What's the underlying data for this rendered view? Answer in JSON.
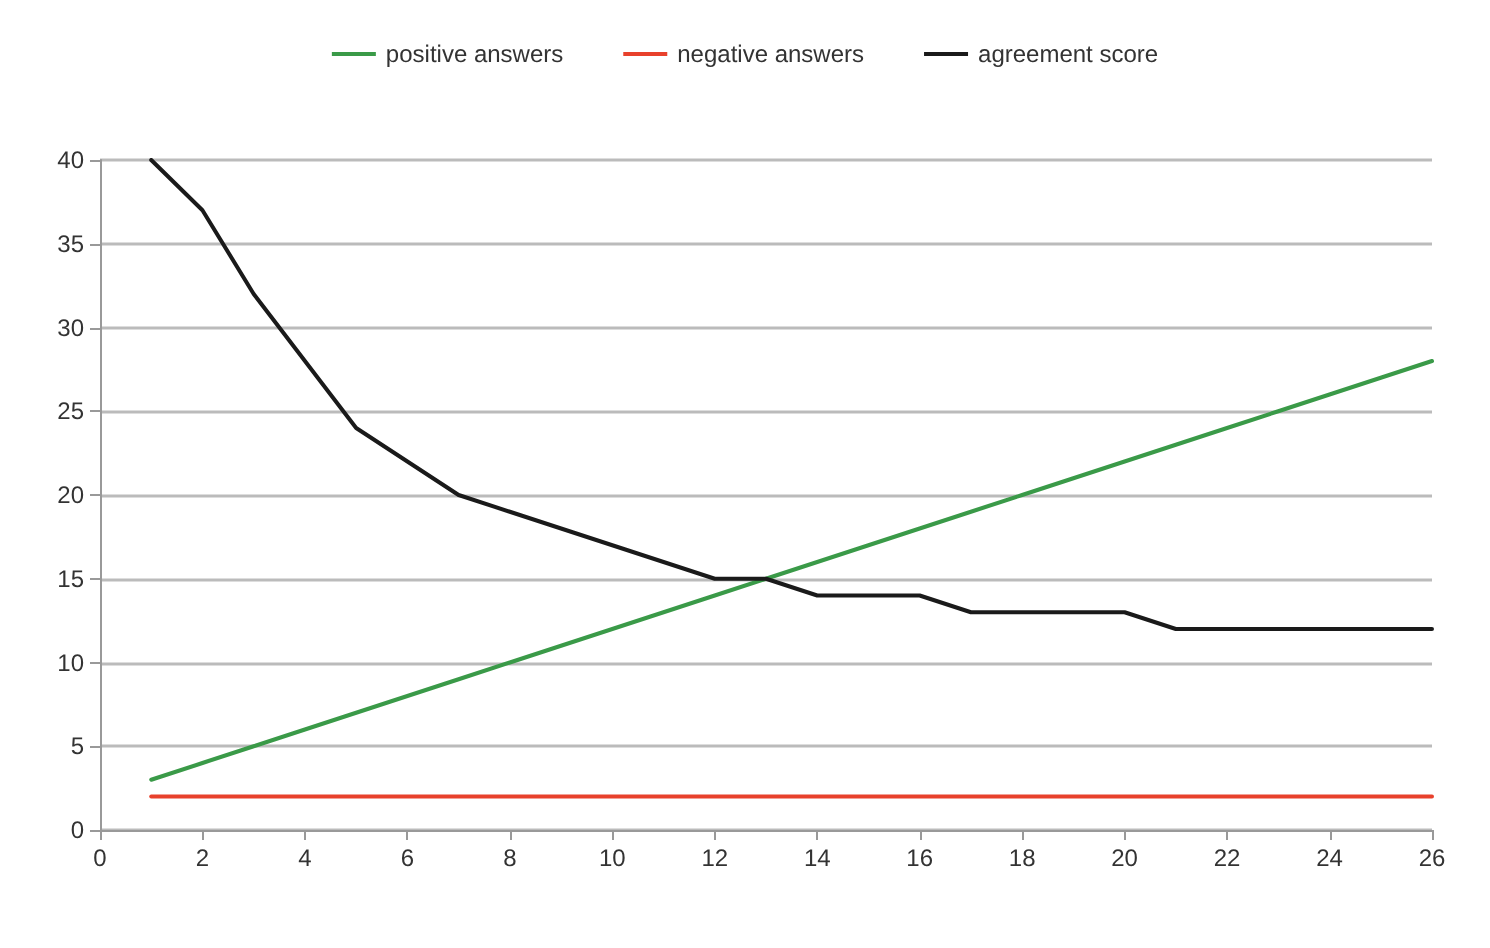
{
  "chart_data": {
    "type": "line",
    "x": [
      1,
      2,
      3,
      4,
      5,
      6,
      7,
      8,
      9,
      10,
      11,
      12,
      13,
      14,
      15,
      16,
      17,
      18,
      19,
      20,
      21,
      22,
      23,
      24,
      25,
      26
    ],
    "series": [
      {
        "name": "positive answers",
        "color": "#3a9a48",
        "values": [
          3,
          4,
          5,
          6,
          7,
          8,
          9,
          10,
          11,
          12,
          13,
          14,
          15,
          16,
          17,
          18,
          19,
          20,
          21,
          22,
          23,
          24,
          25,
          26,
          27,
          28
        ]
      },
      {
        "name": "negative answers",
        "color": "#e8412c",
        "values": [
          2,
          2,
          2,
          2,
          2,
          2,
          2,
          2,
          2,
          2,
          2,
          2,
          2,
          2,
          2,
          2,
          2,
          2,
          2,
          2,
          2,
          2,
          2,
          2,
          2,
          2
        ]
      },
      {
        "name": "agreement score",
        "color": "#1a1a1a",
        "values": [
          40,
          37,
          32,
          28,
          24,
          22,
          20,
          19,
          18,
          17,
          16,
          15,
          15,
          14,
          14,
          14,
          13,
          13,
          13,
          13,
          12,
          12,
          12,
          12,
          12,
          12
        ]
      }
    ],
    "xlim": [
      0,
      26
    ],
    "xticks": [
      0,
      2,
      4,
      6,
      8,
      10,
      12,
      14,
      16,
      18,
      20,
      22,
      24,
      26
    ],
    "ylim": [
      0,
      40
    ],
    "yticks": [
      0,
      5,
      10,
      15,
      20,
      25,
      30,
      35,
      40
    ],
    "grid": "y",
    "legend": "top",
    "marker": "none",
    "line_style": "solid"
  }
}
